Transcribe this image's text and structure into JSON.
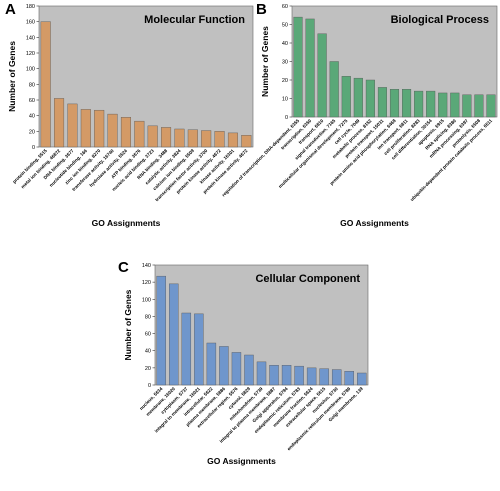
{
  "chart_data": [
    {
      "type": "bar",
      "panel": "A",
      "title": "Molecular Function",
      "xlabel": "GO Assignments",
      "ylabel": "Number of Genes",
      "ylim": [
        0,
        180
      ],
      "yticks": [
        0,
        20,
        40,
        60,
        80,
        100,
        120,
        140,
        160,
        180
      ],
      "grid": false,
      "bar_color": "#d49a66",
      "categories": [
        "protein binding, 5515",
        "metal ion binding, 46872",
        "DNA binding, 3677",
        "nucleotide binding, 166",
        "zinc ion binding, 8270",
        "transferase activity, 16740",
        "hydrolase activity, 5524",
        "ATP binding, 3676",
        "nucleic acid binding, 3723",
        "RNA binding, 3488",
        "catalytic activity, 3824",
        "calcium ion binding, 5509",
        "transcription factor activity, 3700",
        "protein kinase activity, 4672",
        "kinase activity, 16301",
        "protein kinase activity, 4672"
      ],
      "values": [
        160,
        62,
        55,
        48,
        47,
        42,
        38,
        33,
        27,
        25,
        23,
        22,
        21,
        20,
        18,
        15
      ]
    },
    {
      "type": "bar",
      "panel": "B",
      "title": "Biological Process",
      "xlabel": "GO Assignments",
      "ylabel": "Number of Genes",
      "ylim": [
        0,
        60
      ],
      "yticks": [
        0,
        10,
        20,
        30,
        40,
        50,
        60
      ],
      "grid": false,
      "bar_color": "#5aa878",
      "categories": [
        "regulation of transcription, DNA-dependent, 6355",
        "transcription, 6350",
        "transport, 6810",
        "signal transduction, 7165",
        "multicellular organismal development, 7275",
        "cell cycle, 7049",
        "metabolic process, 8152",
        "protein transport, 15031",
        "protein amino acid phosphorylation, 6468",
        "ion transport, 6811",
        "cell proliferation, 8283",
        "cell differentiation, 30154",
        "apoptosis, 6915",
        "RNA splicing, 8380",
        "mRNA processing, 6397",
        "proteolysis, 6508",
        "ubiquitin-dependent protein catabolic process, 6511"
      ],
      "values": [
        54,
        53,
        45,
        30,
        22,
        21,
        20,
        16,
        15,
        15,
        14,
        14,
        13,
        13,
        12,
        12,
        12
      ]
    },
    {
      "type": "bar",
      "panel": "C",
      "title": "Cellular Component",
      "xlabel": "GO Assignments",
      "ylabel": "Number of Genes",
      "ylim": [
        0,
        140
      ],
      "yticks": [
        0,
        20,
        40,
        60,
        80,
        100,
        120,
        140
      ],
      "grid": false,
      "bar_color": "#6f96cc",
      "categories": [
        "nucleus, 5634",
        "membrane, 16020",
        "cytoplasm, 5737",
        "integral to membrane, 16021",
        "intracellular, 5622",
        "plasma membrane, 5886",
        "extracellular region, 5576",
        "cytosol, 5829",
        "mitochondrion, 5739",
        "integral to plasma membrane, 5887",
        "Golgi apparatus, 5794",
        "endoplasmic reticulum, 5783",
        "membrane fraction, 5624",
        "extracellular space, 5615",
        "nucleolus, 5730",
        "endoplasmic reticulum membrane, 5789",
        "Golgi membrane, 139"
      ],
      "values": [
        127,
        118,
        84,
        83,
        49,
        45,
        38,
        35,
        27,
        23,
        23,
        22,
        20,
        19,
        18,
        16,
        14
      ]
    }
  ]
}
